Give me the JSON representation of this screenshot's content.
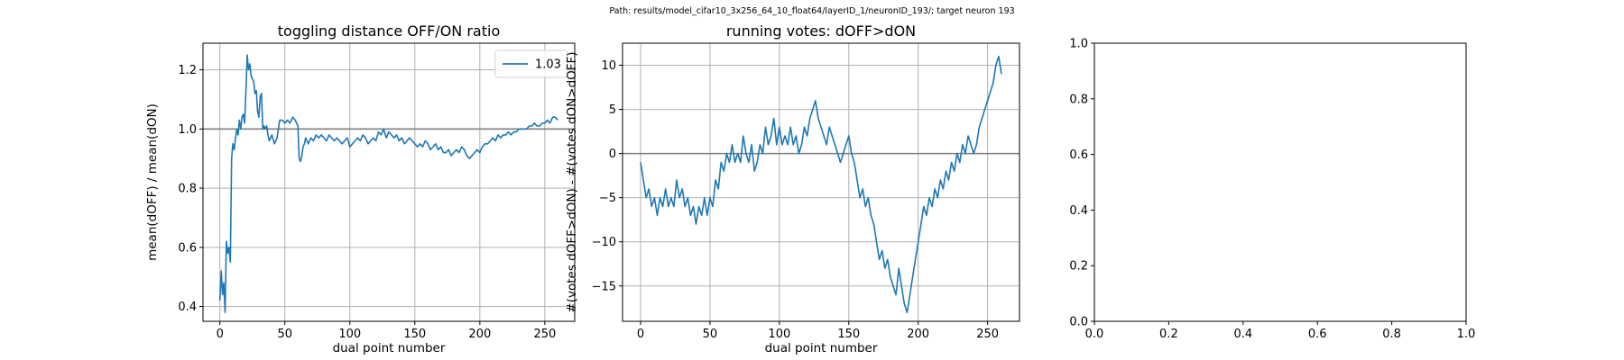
{
  "figure": {
    "suptitle": "Path: results/model_cifar10_3x256_64_10_float64/layerID_1/neuronID_193/; target neuron 193"
  },
  "chart_data": [
    {
      "type": "line",
      "title": "toggling distance OFF/ON ratio",
      "xlabel": "dual point number",
      "ylabel": "mean(dOFF) / mean(dON)",
      "xlim": [
        -13,
        273
      ],
      "ylim": [
        0.35,
        1.29
      ],
      "xticks": [
        0,
        50,
        100,
        150,
        200,
        250
      ],
      "yticks": [
        0.4,
        0.6,
        0.8,
        1.0,
        1.2
      ],
      "ytick_labels": [
        "0.4",
        "0.6",
        "0.8",
        "1.0",
        "1.2"
      ],
      "grid": true,
      "reference_line": 1.0,
      "legend": {
        "placement": "top-right",
        "entries": [
          "1.03"
        ]
      },
      "series": [
        {
          "name": "1.03",
          "color": "#1f77b4",
          "x": [
            0,
            1,
            2,
            3,
            4,
            5,
            6,
            7,
            8,
            9,
            10,
            11,
            12,
            13,
            14,
            15,
            16,
            17,
            18,
            19,
            20,
            21,
            22,
            23,
            24,
            25,
            26,
            27,
            28,
            29,
            30,
            31,
            32,
            33,
            34,
            35,
            36,
            37,
            38,
            40,
            42,
            44,
            46,
            48,
            50,
            52,
            54,
            56,
            58,
            60,
            61,
            62,
            63,
            64,
            65,
            66,
            68,
            70,
            72,
            74,
            76,
            78,
            80,
            82,
            84,
            86,
            88,
            90,
            92,
            94,
            96,
            98,
            100,
            102,
            104,
            106,
            108,
            110,
            112,
            114,
            116,
            118,
            120,
            122,
            124,
            126,
            128,
            130,
            132,
            134,
            136,
            138,
            140,
            142,
            144,
            146,
            148,
            150,
            152,
            154,
            156,
            158,
            160,
            162,
            164,
            166,
            168,
            170,
            172,
            174,
            176,
            178,
            180,
            182,
            184,
            186,
            188,
            190,
            192,
            194,
            196,
            198,
            200,
            202,
            204,
            206,
            208,
            210,
            212,
            214,
            216,
            218,
            220,
            222,
            224,
            226,
            228,
            230,
            232,
            234,
            236,
            238,
            240,
            242,
            244,
            246,
            248,
            250,
            252,
            254,
            256,
            258,
            260
          ],
          "y": [
            0.42,
            0.52,
            0.44,
            0.48,
            0.38,
            0.62,
            0.58,
            0.6,
            0.55,
            0.9,
            0.95,
            0.93,
            0.97,
            1.0,
            0.98,
            1.03,
            1.0,
            1.04,
            1.05,
            1.02,
            1.12,
            1.25,
            1.2,
            1.22,
            1.18,
            1.17,
            1.16,
            1.12,
            1.13,
            1.06,
            1.04,
            1.11,
            1.12,
            1.0,
            1.01,
            1.0,
            1.01,
            0.98,
            0.96,
            0.98,
            0.95,
            0.97,
            1.03,
            1.03,
            1.02,
            1.03,
            1.02,
            1.04,
            1.03,
            1.01,
            0.9,
            0.89,
            0.91,
            0.94,
            0.95,
            0.97,
            0.95,
            0.97,
            0.96,
            0.98,
            0.97,
            0.98,
            0.97,
            0.96,
            0.98,
            0.97,
            0.96,
            0.97,
            0.96,
            0.95,
            0.96,
            0.97,
            0.94,
            0.95,
            0.96,
            0.97,
            0.96,
            0.98,
            0.97,
            0.95,
            0.96,
            0.97,
            0.96,
            0.99,
            0.98,
            1.0,
            0.97,
            0.99,
            0.98,
            0.97,
            0.98,
            0.96,
            0.97,
            0.95,
            0.96,
            0.97,
            0.96,
            0.95,
            0.94,
            0.95,
            0.94,
            0.96,
            0.95,
            0.93,
            0.94,
            0.95,
            0.93,
            0.94,
            0.92,
            0.92,
            0.93,
            0.91,
            0.92,
            0.93,
            0.92,
            0.94,
            0.93,
            0.91,
            0.9,
            0.91,
            0.92,
            0.93,
            0.92,
            0.94,
            0.95,
            0.95,
            0.96,
            0.97,
            0.96,
            0.98,
            0.97,
            0.98,
            0.98,
            0.99,
            0.98,
            0.99,
            0.99,
            1.0,
            1.0,
            1.0,
            1.0,
            1.01,
            1.01,
            1.02,
            1.01,
            1.01,
            1.02,
            1.02,
            1.03,
            1.02,
            1.04,
            1.04,
            1.03
          ]
        }
      ]
    },
    {
      "type": "line",
      "title": "running votes: dOFF>dON",
      "xlabel": "dual point number",
      "ylabel": "#(votes dOFF>dON) - #(votes dON>dOFF)",
      "xlim": [
        -13,
        273
      ],
      "ylim": [
        -19,
        12.5
      ],
      "xticks": [
        0,
        50,
        100,
        150,
        200,
        250
      ],
      "yticks": [
        -15,
        -10,
        -5,
        0,
        5,
        10
      ],
      "ytick_labels": [
        "−15",
        "−10",
        "−5",
        "0",
        "5",
        "10"
      ],
      "grid": true,
      "reference_line": 0,
      "series": [
        {
          "color": "#1f77b4",
          "x": [
            0,
            2,
            4,
            6,
            8,
            10,
            12,
            14,
            16,
            18,
            20,
            22,
            24,
            26,
            28,
            30,
            32,
            34,
            36,
            38,
            40,
            42,
            44,
            46,
            48,
            50,
            52,
            54,
            56,
            58,
            60,
            62,
            64,
            66,
            68,
            70,
            72,
            74,
            76,
            78,
            80,
            82,
            84,
            86,
            88,
            90,
            92,
            94,
            96,
            98,
            100,
            102,
            104,
            106,
            108,
            110,
            112,
            114,
            116,
            118,
            120,
            122,
            124,
            126,
            128,
            130,
            132,
            134,
            136,
            138,
            140,
            142,
            144,
            146,
            148,
            150,
            152,
            154,
            156,
            158,
            160,
            162,
            164,
            166,
            168,
            170,
            172,
            174,
            176,
            178,
            180,
            182,
            184,
            186,
            188,
            190,
            192,
            194,
            196,
            198,
            200,
            202,
            204,
            206,
            208,
            210,
            212,
            214,
            216,
            218,
            220,
            222,
            224,
            226,
            228,
            230,
            232,
            234,
            236,
            238,
            240,
            242,
            244,
            246,
            248,
            250,
            252,
            254,
            256,
            258,
            260
          ],
          "y": [
            -1,
            -3,
            -5,
            -4,
            -6,
            -5,
            -7,
            -5,
            -6,
            -4,
            -6,
            -5,
            -6,
            -3,
            -5,
            -4,
            -6,
            -5,
            -7,
            -6,
            -8,
            -6,
            -7,
            -5,
            -7,
            -5,
            -6,
            -3,
            -4,
            -1,
            -2,
            0,
            -1,
            1,
            -1,
            0,
            -1,
            2,
            0,
            -1,
            1,
            -2,
            -1,
            1,
            0,
            3,
            1,
            2,
            4,
            1,
            3,
            1,
            2,
            1,
            3,
            1,
            2,
            0,
            1,
            3,
            2,
            4,
            5,
            6,
            4,
            3,
            2,
            1,
            3,
            2,
            1,
            0,
            -1,
            0,
            1,
            2,
            0,
            -1,
            -3,
            -5,
            -4,
            -6,
            -5,
            -7,
            -8,
            -10,
            -12,
            -11,
            -13,
            -12,
            -14,
            -15,
            -16,
            -13,
            -15,
            -17,
            -18,
            -16,
            -14,
            -12,
            -10,
            -8,
            -6,
            -7,
            -5,
            -6,
            -4,
            -5,
            -3,
            -4,
            -2,
            -3,
            -1,
            -2,
            0,
            -1,
            1,
            0,
            2,
            1,
            0,
            1,
            3,
            4,
            5,
            6,
            7,
            8,
            10,
            11,
            9
          ]
        }
      ]
    },
    {
      "type": "line",
      "title": "",
      "xlabel": "",
      "ylabel": "",
      "xlim": [
        0,
        1
      ],
      "ylim": [
        0,
        1
      ],
      "xticks": [
        0.0,
        0.2,
        0.4,
        0.6,
        0.8,
        1.0
      ],
      "yticks": [
        0.0,
        0.2,
        0.4,
        0.6,
        0.8,
        1.0
      ],
      "xtick_labels": [
        "0.0",
        "0.2",
        "0.4",
        "0.6",
        "0.8",
        "1.0"
      ],
      "ytick_labels": [
        "0.0",
        "0.2",
        "0.4",
        "0.6",
        "0.8",
        "1.0"
      ],
      "grid": false,
      "series": []
    }
  ]
}
